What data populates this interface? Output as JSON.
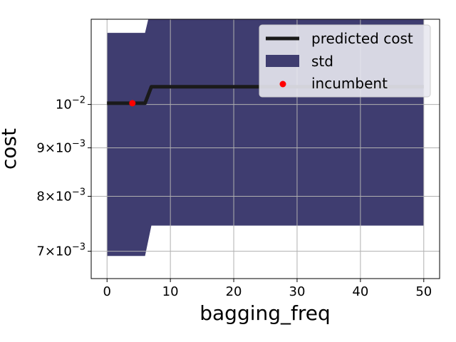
{
  "chart_data": {
    "type": "line",
    "xlabel": "bagging_freq",
    "ylabel": "cost",
    "xlim": [
      -2.5,
      52.5
    ],
    "ylim": [
      0.00655,
      0.0123
    ],
    "y_scale": "log",
    "grid": true,
    "x_ticks": [
      0,
      10,
      20,
      30,
      40,
      50
    ],
    "x_tick_labels": [
      "0",
      "10",
      "20",
      "30",
      "40",
      "50"
    ],
    "y_ticks": [
      {
        "value": 0.007,
        "mantissa": "7",
        "base": "10",
        "exponent": "−3"
      },
      {
        "value": 0.008,
        "mantissa": "8",
        "base": "10",
        "exponent": "−3"
      },
      {
        "value": 0.009,
        "mantissa": "9",
        "base": "10",
        "exponent": "−3"
      },
      {
        "value": 0.01,
        "mantissa": "",
        "base": "10",
        "exponent": "−2"
      }
    ],
    "series": [
      {
        "name": "predicted cost",
        "kind": "line",
        "color": "#1a1a1a",
        "x": [
          0,
          6,
          7,
          50
        ],
        "y": [
          0.01003,
          0.01003,
          0.01044,
          0.01044
        ]
      },
      {
        "name": "std",
        "kind": "band",
        "color": "#3f3d70",
        "x": [
          0,
          6,
          7,
          50
        ],
        "lower": [
          0.00692,
          0.00692,
          0.00745,
          0.00745
        ],
        "upper": [
          0.0119,
          0.0119,
          0.0127,
          0.0127
        ]
      },
      {
        "name": "incumbent",
        "kind": "scatter",
        "color": "#ff0000",
        "x": [
          4
        ],
        "y": [
          0.01003
        ]
      }
    ],
    "legend": {
      "position": "upper-right",
      "entries": [
        "predicted cost",
        "std",
        "incumbent"
      ]
    }
  }
}
